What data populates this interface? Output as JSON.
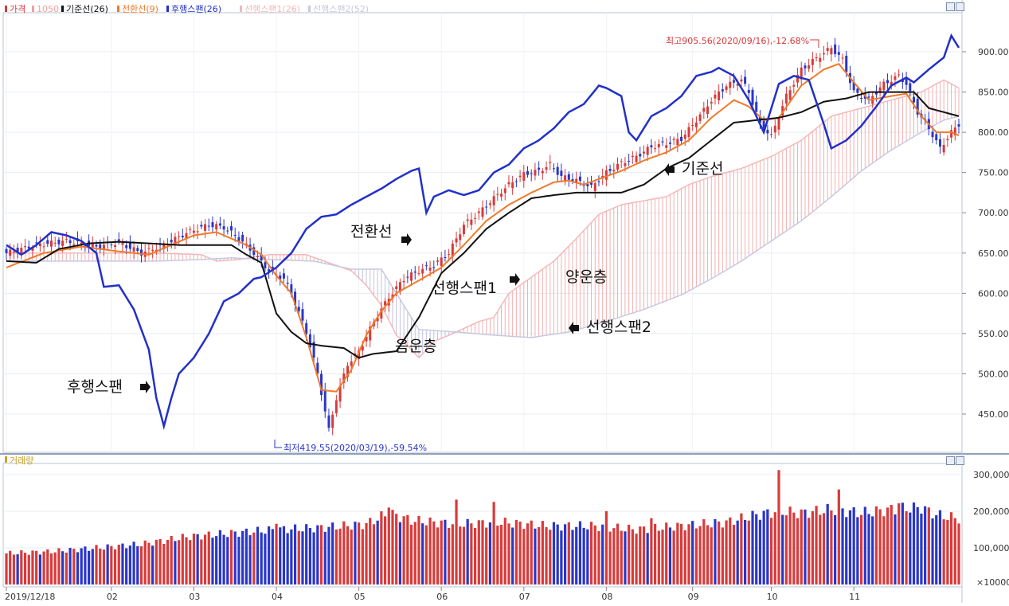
{
  "legend_main": [
    {
      "label": "가격",
      "color": "#d83a3a"
    },
    {
      "label": "1050",
      "color": "#f2a0a0"
    },
    {
      "label": "기준선(26)",
      "color": "#111111"
    },
    {
      "label": "전환선(9)",
      "color": "#f07a2a"
    },
    {
      "label": "후행스팬(26)",
      "color": "#2230c8"
    },
    {
      "label": "선행스팬1(26)",
      "color": "#f4b8b8"
    },
    {
      "label": "선행스팬2(52)",
      "color": "#c8c8e0"
    }
  ],
  "legend_volume": {
    "label": "거래량",
    "color": "#c9a227"
  },
  "annotations": {
    "high": "최고905.56(2020/09/16),-12.68%",
    "low": "최저419.55(2020/03/19),-59.54%",
    "kijun": "기준선",
    "tenkan": "전환선",
    "chikou": "후행스팬",
    "span1": "선행스팬1",
    "span2": "선행스팬2",
    "bull_cloud": "양운층",
    "bear_cloud": "음운층"
  },
  "colors": {
    "up": "#d83a3a",
    "down": "#2a36c8",
    "kijun": "#111111",
    "tenkan": "#f07a2a",
    "chikou": "#2230c8",
    "cloud_bull": "#f0a8a8",
    "cloud_bear": "#b8b8d8"
  },
  "chart_data": [
    {
      "type": "candlestick",
      "title": "",
      "y_ticks": [
        "900.00",
        "850.00",
        "800.00",
        "750.00",
        "700.00",
        "650.00",
        "600.00",
        "550.00",
        "500.00",
        "450.00"
      ],
      "ylim": [
        410,
        930
      ],
      "x_ticks": [
        "2019/12/18",
        "02",
        "03",
        "04",
        "05",
        "06",
        "07",
        "08",
        "09",
        "10",
        "11"
      ],
      "close_anchors": [
        [
          0,
          650
        ],
        [
          8,
          660
        ],
        [
          16,
          665
        ],
        [
          24,
          658
        ],
        [
          30,
          663
        ],
        [
          36,
          650
        ],
        [
          42,
          660
        ],
        [
          48,
          675
        ],
        [
          54,
          685
        ],
        [
          58,
          682
        ],
        [
          62,
          668
        ],
        [
          66,
          650
        ],
        [
          70,
          628
        ],
        [
          74,
          618
        ],
        [
          76,
          600
        ],
        [
          80,
          552
        ],
        [
          83,
          500
        ],
        [
          86,
          430
        ],
        [
          88,
          470
        ],
        [
          91,
          512
        ],
        [
          94,
          528
        ],
        [
          98,
          565
        ],
        [
          102,
          595
        ],
        [
          106,
          618
        ],
        [
          110,
          628
        ],
        [
          114,
          635
        ],
        [
          118,
          650
        ],
        [
          122,
          685
        ],
        [
          126,
          700
        ],
        [
          130,
          718
        ],
        [
          134,
          735
        ],
        [
          138,
          748
        ],
        [
          142,
          752
        ],
        [
          145,
          760
        ],
        [
          148,
          745
        ],
        [
          152,
          740
        ],
        [
          156,
          732
        ],
        [
          160,
          750
        ],
        [
          164,
          762
        ],
        [
          168,
          770
        ],
        [
          172,
          782
        ],
        [
          176,
          786
        ],
        [
          180,
          792
        ],
        [
          184,
          815
        ],
        [
          188,
          840
        ],
        [
          192,
          858
        ],
        [
          196,
          865
        ],
        [
          198,
          850
        ],
        [
          201,
          810
        ],
        [
          204,
          795
        ],
        [
          208,
          845
        ],
        [
          212,
          878
        ],
        [
          216,
          892
        ],
        [
          220,
          905
        ],
        [
          223,
          890
        ],
        [
          226,
          850
        ],
        [
          230,
          840
        ],
        [
          234,
          860
        ],
        [
          238,
          870
        ],
        [
          240,
          860
        ],
        [
          243,
          825
        ],
        [
          246,
          805
        ],
        [
          249,
          780
        ],
        [
          252,
          800
        ],
        [
          254,
          810
        ]
      ],
      "tenkan_anchors": [
        [
          0,
          632
        ],
        [
          10,
          650
        ],
        [
          20,
          658
        ],
        [
          30,
          652
        ],
        [
          38,
          648
        ],
        [
          44,
          660
        ],
        [
          50,
          672
        ],
        [
          56,
          676
        ],
        [
          60,
          668
        ],
        [
          64,
          660
        ],
        [
          68,
          648
        ],
        [
          72,
          622
        ],
        [
          76,
          600
        ],
        [
          80,
          545
        ],
        [
          84,
          480
        ],
        [
          88,
          478
        ],
        [
          92,
          505
        ],
        [
          96,
          548
        ],
        [
          100,
          578
        ],
        [
          104,
          600
        ],
        [
          110,
          616
        ],
        [
          116,
          632
        ],
        [
          122,
          660
        ],
        [
          128,
          690
        ],
        [
          134,
          710
        ],
        [
          140,
          725
        ],
        [
          146,
          738
        ],
        [
          150,
          740
        ],
        [
          154,
          735
        ],
        [
          158,
          742
        ],
        [
          164,
          752
        ],
        [
          170,
          765
        ],
        [
          176,
          775
        ],
        [
          182,
          790
        ],
        [
          188,
          818
        ],
        [
          194,
          840
        ],
        [
          198,
          832
        ],
        [
          202,
          815
        ],
        [
          206,
          818
        ],
        [
          212,
          858
        ],
        [
          218,
          878
        ],
        [
          222,
          885
        ],
        [
          226,
          862
        ],
        [
          230,
          840
        ],
        [
          236,
          845
        ],
        [
          240,
          848
        ],
        [
          244,
          820
        ],
        [
          248,
          800
        ],
        [
          252,
          800
        ],
        [
          254,
          796
        ]
      ],
      "kijun_anchors": [
        [
          0,
          640
        ],
        [
          8,
          638
        ],
        [
          14,
          655
        ],
        [
          22,
          662
        ],
        [
          30,
          664
        ],
        [
          38,
          662
        ],
        [
          46,
          660
        ],
        [
          54,
          660
        ],
        [
          60,
          660
        ],
        [
          64,
          648
        ],
        [
          68,
          638
        ],
        [
          72,
          575
        ],
        [
          76,
          552
        ],
        [
          80,
          538
        ],
        [
          84,
          535
        ],
        [
          90,
          532
        ],
        [
          94,
          520
        ],
        [
          98,
          525
        ],
        [
          104,
          528
        ],
        [
          110,
          570
        ],
        [
          116,
          625
        ],
        [
          122,
          650
        ],
        [
          128,
          680
        ],
        [
          134,
          700
        ],
        [
          140,
          718
        ],
        [
          146,
          722
        ],
        [
          152,
          725
        ],
        [
          158,
          725
        ],
        [
          164,
          725
        ],
        [
          170,
          735
        ],
        [
          176,
          755
        ],
        [
          182,
          768
        ],
        [
          188,
          790
        ],
        [
          194,
          812
        ],
        [
          200,
          815
        ],
        [
          206,
          818
        ],
        [
          212,
          825
        ],
        [
          218,
          838
        ],
        [
          224,
          842
        ],
        [
          230,
          850
        ],
        [
          236,
          850
        ],
        [
          242,
          850
        ],
        [
          246,
          830
        ],
        [
          250,
          825
        ],
        [
          254,
          820
        ]
      ],
      "chikou_anchors": [
        [
          0,
          660
        ],
        [
          4,
          648
        ],
        [
          8,
          660
        ],
        [
          12,
          676
        ],
        [
          16,
          672
        ],
        [
          20,
          665
        ],
        [
          24,
          650
        ],
        [
          26,
          608
        ],
        [
          30,
          610
        ],
        [
          34,
          580
        ],
        [
          38,
          530
        ],
        [
          40,
          470
        ],
        [
          42,
          435
        ],
        [
          44,
          470
        ],
        [
          46,
          500
        ],
        [
          50,
          520
        ],
        [
          54,
          550
        ],
        [
          58,
          590
        ],
        [
          62,
          600
        ],
        [
          66,
          618
        ],
        [
          68,
          620
        ],
        [
          72,
          632
        ],
        [
          76,
          650
        ],
        [
          80,
          680
        ],
        [
          84,
          695
        ],
        [
          88,
          698
        ],
        [
          92,
          710
        ],
        [
          96,
          720
        ],
        [
          100,
          730
        ],
        [
          104,
          742
        ],
        [
          108,
          752
        ],
        [
          110,
          755
        ],
        [
          112,
          700
        ],
        [
          114,
          720
        ],
        [
          118,
          728
        ],
        [
          122,
          722
        ],
        [
          126,
          728
        ],
        [
          130,
          750
        ],
        [
          134,
          760
        ],
        [
          138,
          780
        ],
        [
          142,
          790
        ],
        [
          146,
          805
        ],
        [
          150,
          825
        ],
        [
          154,
          835
        ],
        [
          158,
          858
        ],
        [
          160,
          855
        ],
        [
          164,
          845
        ],
        [
          166,
          800
        ],
        [
          168,
          790
        ],
        [
          172,
          820
        ],
        [
          176,
          830
        ],
        [
          180,
          845
        ],
        [
          184,
          870
        ],
        [
          188,
          875
        ],
        [
          190,
          880
        ],
        [
          194,
          870
        ],
        [
          198,
          840
        ],
        [
          202,
          800
        ],
        [
          206,
          860
        ],
        [
          210,
          870
        ],
        [
          214,
          865
        ],
        [
          218,
          810
        ],
        [
          220,
          780
        ],
        [
          224,
          790
        ],
        [
          228,
          808
        ],
        [
          232,
          832
        ],
        [
          236,
          858
        ],
        [
          240,
          868
        ],
        [
          242,
          862
        ],
        [
          246,
          878
        ],
        [
          250,
          893
        ],
        [
          252,
          920
        ],
        [
          254,
          905
        ]
      ],
      "span1_anchors": [
        [
          0,
          650
        ],
        [
          20,
          650
        ],
        [
          40,
          650
        ],
        [
          52,
          648
        ],
        [
          56,
          640
        ],
        [
          62,
          642
        ],
        [
          70,
          648
        ],
        [
          80,
          648
        ],
        [
          92,
          628
        ],
        [
          96,
          610
        ],
        [
          100,
          585
        ],
        [
          104,
          548
        ],
        [
          106,
          540
        ],
        [
          110,
          520
        ],
        [
          114,
          540
        ],
        [
          120,
          552
        ],
        [
          126,
          565
        ],
        [
          130,
          570
        ],
        [
          134,
          600
        ],
        [
          140,
          620
        ],
        [
          146,
          640
        ],
        [
          152,
          668
        ],
        [
          158,
          698
        ],
        [
          164,
          710
        ],
        [
          170,
          715
        ],
        [
          176,
          720
        ],
        [
          182,
          735
        ],
        [
          188,
          745
        ],
        [
          196,
          755
        ],
        [
          204,
          770
        ],
        [
          212,
          790
        ],
        [
          220,
          820
        ],
        [
          228,
          830
        ],
        [
          236,
          840
        ],
        [
          244,
          850
        ],
        [
          250,
          865
        ],
        [
          254,
          855
        ]
      ],
      "span2_anchors": [
        [
          0,
          640
        ],
        [
          24,
          640
        ],
        [
          40,
          640
        ],
        [
          52,
          642
        ],
        [
          60,
          644
        ],
        [
          70,
          642
        ],
        [
          82,
          640
        ],
        [
          92,
          630
        ],
        [
          100,
          630
        ],
        [
          110,
          555
        ],
        [
          120,
          552
        ],
        [
          130,
          548
        ],
        [
          140,
          545
        ],
        [
          150,
          552
        ],
        [
          160,
          565
        ],
        [
          170,
          580
        ],
        [
          180,
          598
        ],
        [
          188,
          618
        ],
        [
          196,
          640
        ],
        [
          204,
          665
        ],
        [
          212,
          690
        ],
        [
          220,
          720
        ],
        [
          228,
          752
        ],
        [
          236,
          778
        ],
        [
          244,
          800
        ],
        [
          250,
          815
        ],
        [
          254,
          820
        ]
      ],
      "highlights": [
        {
          "label": "최고",
          "value": 905.56,
          "date": "2020/09/16"
        },
        {
          "label": "최저",
          "value": 419.55,
          "date": "2020/03/19"
        }
      ]
    },
    {
      "type": "bar",
      "title": "거래량",
      "unit": "×10000",
      "y_ticks": [
        "300,000",
        "200,000",
        "100,000"
      ],
      "ylim": [
        0,
        320000
      ],
      "anchors": [
        [
          0,
          85000
        ],
        [
          12,
          90000
        ],
        [
          24,
          100000
        ],
        [
          36,
          110000
        ],
        [
          48,
          130000
        ],
        [
          60,
          140000
        ],
        [
          72,
          150000
        ],
        [
          84,
          155000
        ],
        [
          96,
          165000
        ],
        [
          102,
          195000
        ],
        [
          108,
          175000
        ],
        [
          120,
          165000
        ],
        [
          132,
          170000
        ],
        [
          144,
          160000
        ],
        [
          156,
          160000
        ],
        [
          168,
          150000
        ],
        [
          180,
          160000
        ],
        [
          192,
          170000
        ],
        [
          200,
          190000
        ],
        [
          206,
          200000
        ],
        [
          212,
          195000
        ],
        [
          220,
          205000
        ],
        [
          228,
          195000
        ],
        [
          236,
          205000
        ],
        [
          244,
          210000
        ],
        [
          248,
          190000
        ],
        [
          254,
          180000
        ]
      ],
      "spikes": [
        [
          72,
          180000
        ],
        [
          102,
          225000
        ],
        [
          120,
          215000
        ],
        [
          130,
          210000
        ],
        [
          160,
          190000
        ],
        [
          172,
          180000
        ],
        [
          206,
          290000
        ],
        [
          222,
          245000
        ],
        [
          238,
          225000
        ]
      ]
    }
  ]
}
